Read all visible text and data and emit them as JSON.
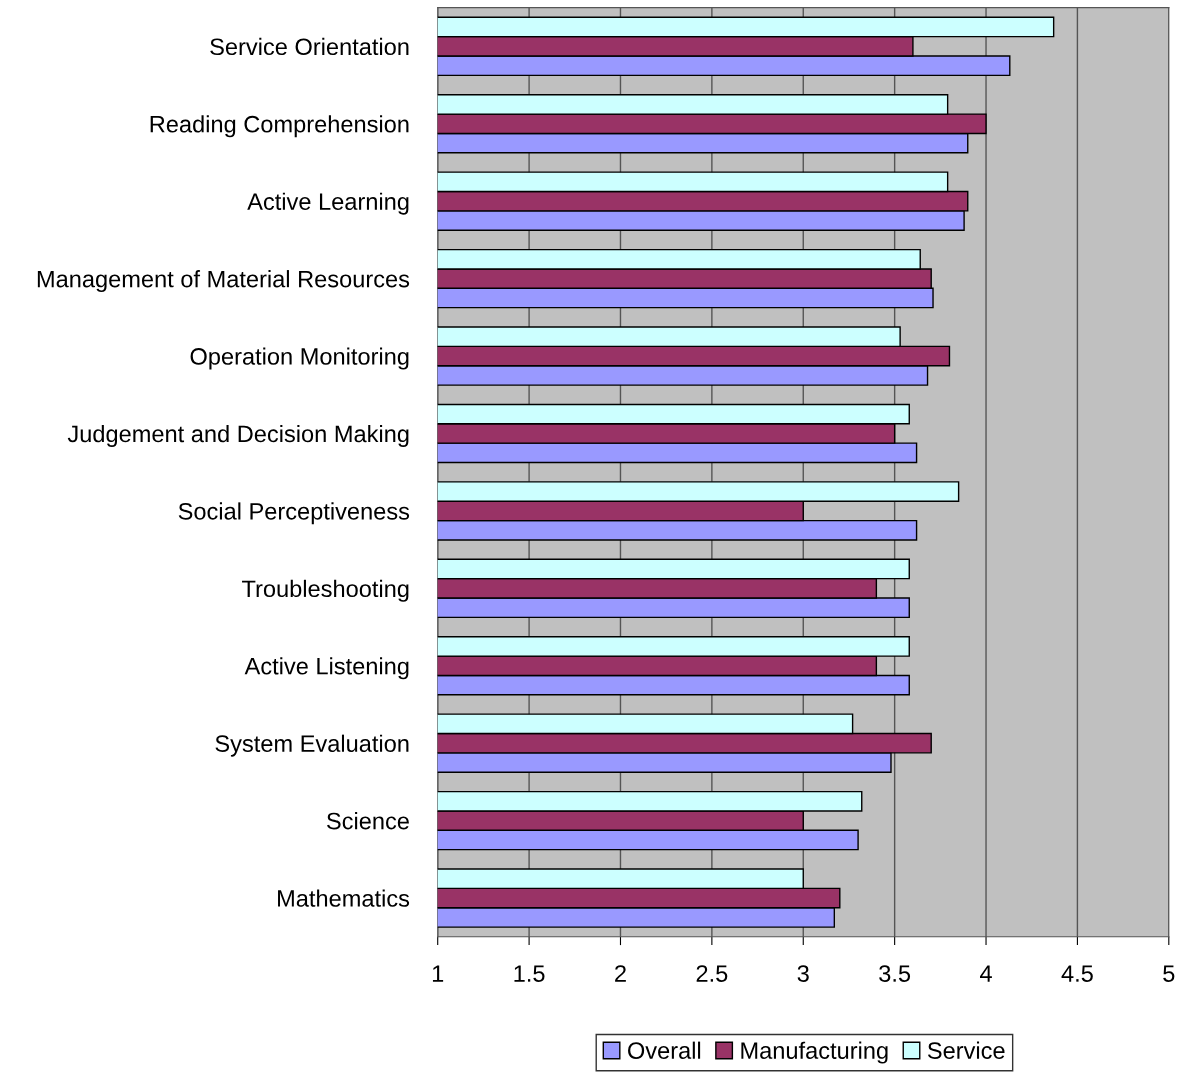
{
  "chart_data": {
    "type": "bar",
    "orientation": "horizontal",
    "categories": [
      "Service Orientation",
      "Reading Comprehension",
      "Active Learning",
      "Management of Material Resources",
      "Operation Monitoring",
      "Judgement and Decision Making",
      "Social Perceptiveness",
      "Troubleshooting",
      "Active Listening",
      "System Evaluation",
      "Science",
      "Mathematics"
    ],
    "series": [
      {
        "name": "Overall",
        "color": "#9999ff",
        "values": [
          4.13,
          3.9,
          3.88,
          3.71,
          3.68,
          3.62,
          3.62,
          3.58,
          3.58,
          3.48,
          3.3,
          3.17
        ]
      },
      {
        "name": "Manufacturing",
        "color": "#993366",
        "values": [
          3.6,
          4.0,
          3.9,
          3.7,
          3.8,
          3.5,
          3.0,
          3.4,
          3.4,
          3.7,
          3.0,
          3.2
        ]
      },
      {
        "name": "Service",
        "color": "#ccffff",
        "values": [
          4.37,
          3.79,
          3.79,
          3.64,
          3.53,
          3.58,
          3.85,
          3.58,
          3.58,
          3.27,
          3.32,
          3.0
        ]
      }
    ],
    "xlim": [
      1,
      5
    ],
    "xticks": [
      1,
      1.5,
      2,
      2.5,
      3,
      3.5,
      4,
      4.5,
      5
    ],
    "grid": "x",
    "legend": "bottom"
  }
}
